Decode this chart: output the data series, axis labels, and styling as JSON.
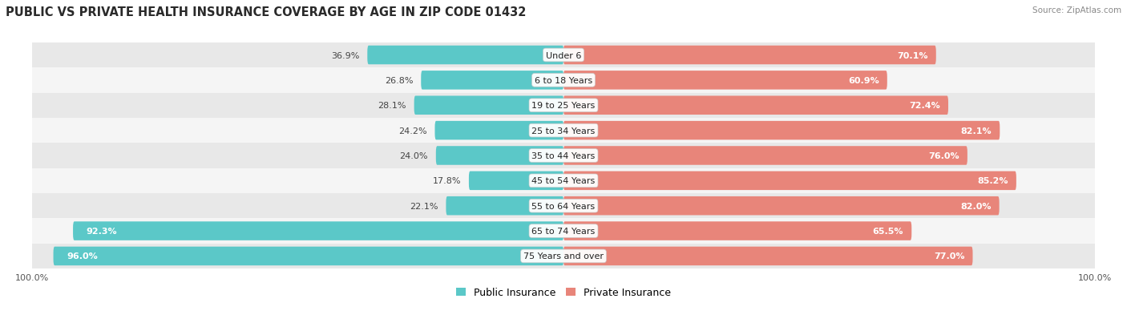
{
  "title": "PUBLIC VS PRIVATE HEALTH INSURANCE COVERAGE BY AGE IN ZIP CODE 01432",
  "source": "Source: ZipAtlas.com",
  "categories": [
    "Under 6",
    "6 to 18 Years",
    "19 to 25 Years",
    "25 to 34 Years",
    "35 to 44 Years",
    "45 to 54 Years",
    "55 to 64 Years",
    "65 to 74 Years",
    "75 Years and over"
  ],
  "public_values": [
    36.9,
    26.8,
    28.1,
    24.2,
    24.0,
    17.8,
    22.1,
    92.3,
    96.0
  ],
  "private_values": [
    70.1,
    60.9,
    72.4,
    82.1,
    76.0,
    85.2,
    82.0,
    65.5,
    77.0
  ],
  "public_color": "#5BC8C8",
  "private_color": "#E8857A",
  "row_bg_colors": [
    "#E8E8E8",
    "#F5F5F5"
  ],
  "title_fontsize": 10.5,
  "label_fontsize": 8,
  "value_fontsize": 8,
  "legend_fontsize": 9,
  "axis_label_fontsize": 8,
  "max_val": 100.0
}
